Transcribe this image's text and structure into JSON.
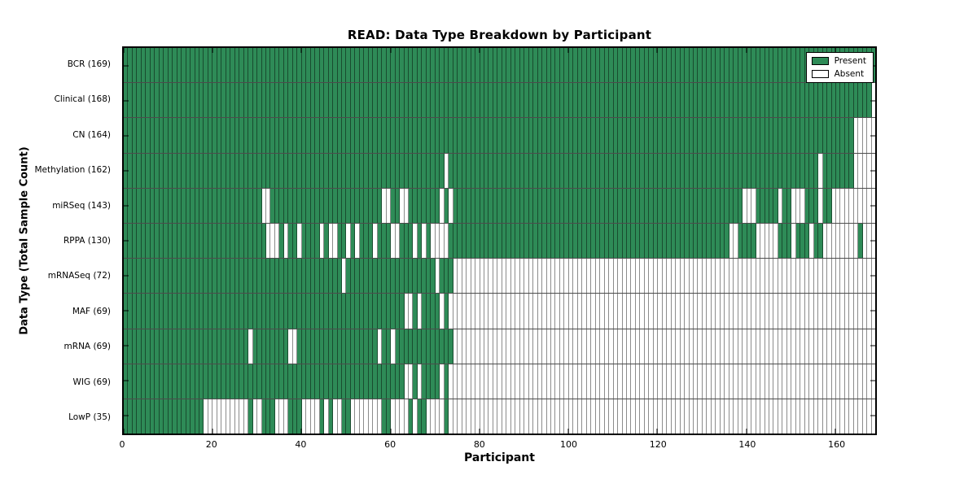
{
  "colors": {
    "present": "#2e8b57",
    "absent": "#ffffff",
    "frame": "#000000"
  },
  "chart_data": {
    "type": "heatmap",
    "title": "READ: Data Type Breakdown by Participant",
    "xlabel": "Participant",
    "ylabel": "Data Type (Total Sample Count)",
    "x_ticks": [
      0,
      20,
      40,
      60,
      80,
      100,
      120,
      140,
      160
    ],
    "x_range": [
      0,
      169
    ],
    "n_participants": 169,
    "grid": false,
    "legend_position": "upper right",
    "legend": [
      {
        "label": "Present",
        "key": "present"
      },
      {
        "label": "Absent",
        "key": "absent"
      }
    ],
    "encoding_note": "absent_runs are inclusive [start,end] participant index ranges (0-168) where the data type is absent; all other participants are present",
    "rows": [
      {
        "label": "BCR (169)",
        "data_type": "BCR",
        "present_count": 169,
        "absent_runs": []
      },
      {
        "label": "Clinical (168)",
        "data_type": "Clinical",
        "present_count": 168,
        "absent_runs": [
          [
            168,
            168
          ]
        ]
      },
      {
        "label": "CN (164)",
        "data_type": "CN",
        "present_count": 164,
        "absent_runs": [
          [
            164,
            168
          ]
        ]
      },
      {
        "label": "Methylation (162)",
        "data_type": "Methylation",
        "present_count": 162,
        "absent_runs": [
          [
            72,
            72
          ],
          [
            156,
            156
          ],
          [
            164,
            168
          ]
        ]
      },
      {
        "label": "miRSeq (143)",
        "data_type": "miRSeq",
        "present_count": 143,
        "absent_runs": [
          [
            31,
            32
          ],
          [
            58,
            59
          ],
          [
            62,
            63
          ],
          [
            71,
            71
          ],
          [
            73,
            73
          ],
          [
            139,
            141
          ],
          [
            147,
            147
          ],
          [
            150,
            152
          ],
          [
            156,
            156
          ],
          [
            159,
            168
          ]
        ]
      },
      {
        "label": "RPPA (130)",
        "data_type": "RPPA",
        "present_count": 130,
        "absent_runs": [
          [
            32,
            34
          ],
          [
            36,
            36
          ],
          [
            39,
            39
          ],
          [
            44,
            44
          ],
          [
            46,
            47
          ],
          [
            50,
            50
          ],
          [
            52,
            52
          ],
          [
            56,
            56
          ],
          [
            60,
            61
          ],
          [
            65,
            65
          ],
          [
            67,
            67
          ],
          [
            69,
            72
          ],
          [
            136,
            137
          ],
          [
            142,
            146
          ],
          [
            150,
            150
          ],
          [
            154,
            154
          ],
          [
            157,
            164
          ],
          [
            166,
            168
          ]
        ]
      },
      {
        "label": "mRNASeq (72)",
        "data_type": "mRNASeq",
        "present_count": 72,
        "absent_runs": [
          [
            49,
            49
          ],
          [
            70,
            70
          ],
          [
            74,
            168
          ]
        ]
      },
      {
        "label": "MAF (69)",
        "data_type": "MAF",
        "present_count": 69,
        "absent_runs": [
          [
            63,
            64
          ],
          [
            66,
            66
          ],
          [
            71,
            71
          ],
          [
            73,
            168
          ]
        ]
      },
      {
        "label": "mRNA (69)",
        "data_type": "mRNA",
        "present_count": 69,
        "absent_runs": [
          [
            28,
            28
          ],
          [
            37,
            38
          ],
          [
            57,
            57
          ],
          [
            60,
            60
          ],
          [
            74,
            168
          ]
        ]
      },
      {
        "label": "WIG (69)",
        "data_type": "WIG",
        "present_count": 69,
        "absent_runs": [
          [
            63,
            64
          ],
          [
            66,
            66
          ],
          [
            71,
            71
          ],
          [
            73,
            168
          ]
        ]
      },
      {
        "label": "LowP (35)",
        "data_type": "LowP",
        "present_count": 35,
        "absent_runs": [
          [
            18,
            27
          ],
          [
            29,
            30
          ],
          [
            34,
            36
          ],
          [
            40,
            43
          ],
          [
            45,
            45
          ],
          [
            47,
            48
          ],
          [
            51,
            57
          ],
          [
            60,
            63
          ],
          [
            65,
            65
          ],
          [
            68,
            71
          ],
          [
            73,
            168
          ]
        ]
      }
    ]
  }
}
